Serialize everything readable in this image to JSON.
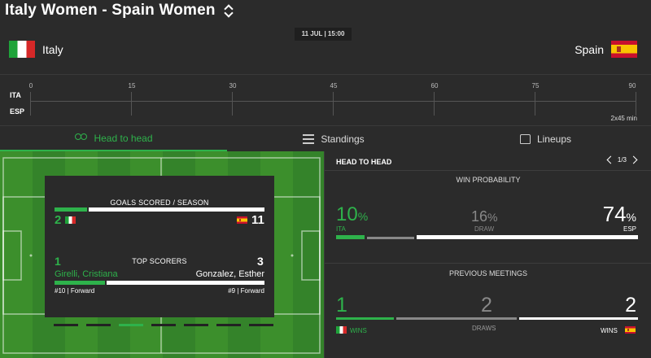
{
  "match": {
    "title": "Italy Women - Spain Women",
    "datetime": "11 JUL | 15:00",
    "home": {
      "name": "Italy",
      "abbr": "ITA"
    },
    "away": {
      "name": "Spain",
      "abbr": "ESP"
    }
  },
  "timeline": {
    "ticks": [
      "0",
      "15",
      "30",
      "45",
      "60",
      "75",
      "90"
    ],
    "periods": "2x45 min"
  },
  "tabs": [
    {
      "label": "Head to head",
      "icon": "people-icon",
      "active": true
    },
    {
      "label": "Standings",
      "icon": "table-icon",
      "active": false
    },
    {
      "label": "Lineups",
      "icon": "shirt-icon",
      "active": false
    }
  ],
  "stats_card": {
    "goals_title": "GOALS SCORED / SEASON",
    "home_goals": "2",
    "away_goals": "11",
    "scorers_title": "TOP SCORERS",
    "home_scorer": {
      "goals": "1",
      "name": "Girelli, Cristiana",
      "info": "#10 | Forward"
    },
    "away_scorer": {
      "goals": "3",
      "name": "Gonzalez, Esther",
      "info": "#9 | Forward"
    }
  },
  "head_to_head": {
    "header": "HEAD TO HEAD",
    "pager": "1/3",
    "win_probability_title": "WIN PROBABILITY",
    "home_pct": "10",
    "draw_pct": "16",
    "away_pct": "74",
    "pct_sign": "%",
    "home_label": "ITA",
    "draw_label": "DRAW",
    "away_label": "ESP",
    "previous_meetings_title": "PREVIOUS MEETINGS",
    "home_wins": "1",
    "draws": "2",
    "away_wins": "2",
    "wins_label": "WINS",
    "draws_label": "DRAWS"
  },
  "colors": {
    "accent": "#2eb24b",
    "background": "#2b2b2b",
    "pitch": "#3c8f2c"
  }
}
